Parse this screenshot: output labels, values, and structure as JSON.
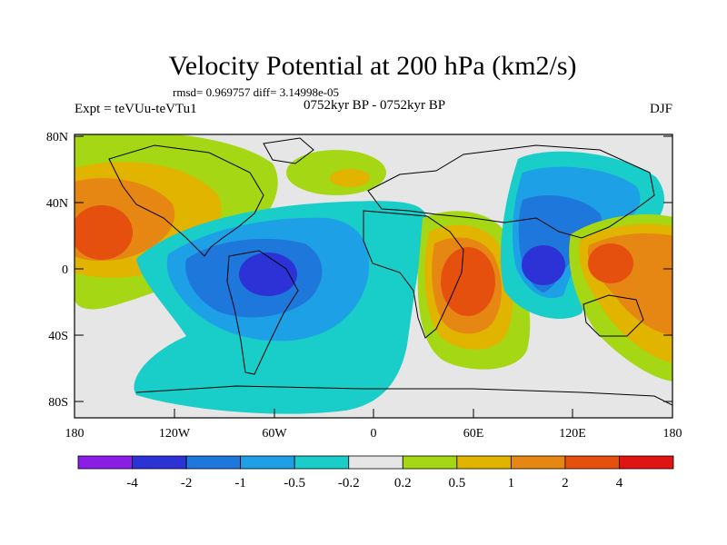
{
  "title": "Velocity Potential at 200 hPa (km2/s)",
  "stats": "rmsd= 0.969757 diff= 3.14998e-05",
  "experiment": "Expt = teVUu-teVTu1",
  "period": "0752kyr BP - 0752kyr BP",
  "season": "DJF",
  "axes": {
    "x_ticks": [
      "180",
      "120W",
      "60W",
      "0",
      "60E",
      "120E",
      "180"
    ],
    "y_ticks": [
      "80N",
      "40N",
      "0",
      "40S",
      "80S"
    ]
  },
  "colorbar": {
    "colors": [
      "#8a1ee6",
      "#2d32d7",
      "#1e78dc",
      "#1ea0e6",
      "#19cdc8",
      "#e6e6e6",
      "#a5d714",
      "#e1b400",
      "#e68714",
      "#e6500f",
      "#e11414"
    ],
    "labels": [
      "-4",
      "-2",
      "-1",
      "-0.5",
      "-0.2",
      "0.2",
      "0.5",
      "1",
      "2",
      "4"
    ]
  }
}
